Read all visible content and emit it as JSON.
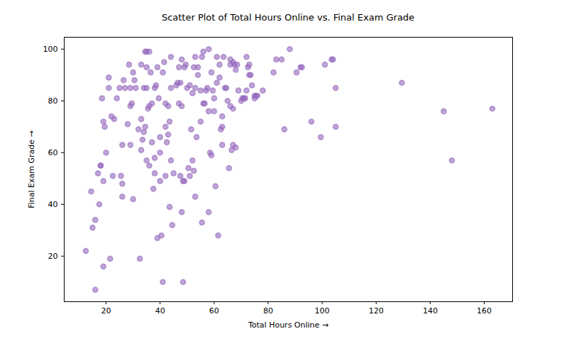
{
  "chart_data": {
    "type": "scatter",
    "title": "Scatter Plot of Total Hours Online vs. Final Exam Grade",
    "x_label": "Total Hours Online",
    "y_label": "Final Exam Grade",
    "color": "#9467bd",
    "marker": "circle",
    "grid": false,
    "xlim": [
      4.5,
      170.5
    ],
    "ylim": [
      2.4,
      104.6
    ],
    "xticks": [
      20,
      40,
      60,
      80,
      100,
      120,
      140,
      160
    ],
    "yticks": [
      20,
      40,
      60,
      80,
      100
    ],
    "x": [
      12.5,
      14.5,
      15,
      16,
      16,
      17,
      17.5,
      18,
      18,
      18.5,
      19,
      19,
      19,
      19.5,
      20,
      21,
      21,
      21.5,
      22,
      22.5,
      23,
      24,
      25,
      25.5,
      26,
      26,
      26,
      26.5,
      27,
      28,
      28.5,
      29,
      29,
      29,
      29.5,
      30,
      30,
      30.5,
      31,
      32,
      32.5,
      33,
      33,
      33,
      33.5,
      34,
      34,
      34.5,
      34.5,
      35,
      35,
      35,
      35,
      35.5,
      36,
      36,
      36,
      36.5,
      37,
      37,
      37.5,
      38,
      38,
      38,
      38.5,
      39,
      39,
      39.5,
      40,
      40,
      40,
      40.5,
      41,
      41,
      41.5,
      42,
      42,
      42,
      42.5,
      43,
      43,
      43.5,
      43.5,
      44,
      44,
      44,
      44.5,
      45,
      46,
      46.5,
      47,
      47,
      47.5,
      47.5,
      48,
      48,
      48,
      48.5,
      48.5,
      49,
      49,
      49.5,
      50,
      50.5,
      51,
      51,
      51.5,
      52,
      52,
      52.5,
      52.5,
      53,
      53,
      53,
      53.5,
      54,
      54,
      55,
      55,
      55.5,
      55.5,
      56,
      56,
      56.5,
      57,
      57.5,
      58,
      58,
      58,
      58.5,
      59,
      59,
      59.5,
      60,
      60,
      60.5,
      61,
      61,
      61.5,
      62,
      62,
      62.5,
      63,
      63,
      63,
      63.5,
      64,
      64.5,
      65,
      65.5,
      66,
      66,
      66,
      66.5,
      67,
      67,
      67,
      67.5,
      68,
      68,
      68.5,
      69,
      70,
      70.5,
      71,
      71.5,
      72,
      72,
      72.5,
      73,
      73,
      73.5,
      74,
      75,
      75,
      75.5,
      76,
      78,
      82,
      83,
      85,
      86,
      88,
      90.5,
      92,
      92.5,
      96,
      99.5,
      101,
      103.5,
      104,
      105,
      105,
      129.5,
      145,
      148,
      163
    ],
    "values": [
      22,
      45,
      31,
      34,
      7,
      52,
      40,
      55,
      55,
      81,
      72,
      49,
      16,
      70,
      60,
      85,
      89,
      19,
      74,
      51,
      73,
      81,
      85,
      51,
      63,
      48,
      43,
      88,
      85,
      71,
      94,
      78,
      63,
      85,
      79,
      42,
      91,
      88,
      85,
      69,
      19,
      73,
      94,
      61,
      65,
      68,
      85,
      70,
      99,
      99,
      93,
      57,
      85,
      77,
      99,
      55,
      78,
      91,
      64,
      79,
      46,
      52,
      58,
      85,
      86,
      93,
      27,
      81,
      49,
      66,
      60,
      28,
      91,
      10,
      95,
      70,
      51,
      79,
      64,
      67,
      78,
      39,
      72,
      57,
      97,
      85,
      32,
      52,
      86,
      87,
      93,
      79,
      51,
      87,
      37,
      78,
      96,
      10,
      49,
      93,
      49,
      94,
      85,
      54,
      51,
      86,
      69,
      83,
      57,
      53,
      93,
      85,
      97,
      43,
      66,
      93,
      90,
      72,
      84,
      33,
      97,
      99,
      79,
      79,
      84,
      85,
      37,
      76,
      100,
      60,
      59,
      91,
      84,
      81,
      76,
      47,
      87,
      97,
      28,
      94,
      89,
      69,
      70,
      74,
      63,
      97,
      85,
      85,
      80,
      54,
      94,
      78,
      96,
      61,
      95,
      77,
      63,
      94,
      92,
      62,
      94,
      84,
      80,
      81,
      81,
      81,
      84,
      97,
      93,
      94,
      90,
      90,
      86,
      82,
      81,
      82,
      82,
      84,
      91,
      96,
      96,
      69,
      100,
      91,
      93,
      93,
      72,
      66,
      94,
      96,
      96,
      70,
      85,
      87,
      76,
      57,
      77
    ]
  }
}
